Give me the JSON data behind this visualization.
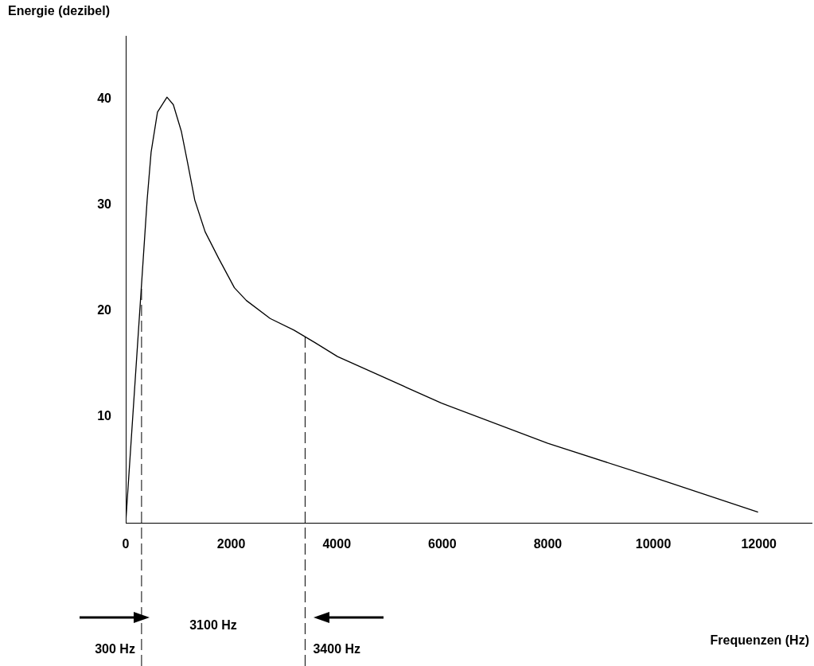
{
  "chart_data": {
    "type": "line",
    "ylabel": "Energie (dezibel)",
    "x": [
      0,
      406,
      481,
      602,
      782,
      902,
      1053,
      1173,
      1308,
      1504,
      1759,
      2060,
      2286,
      2737,
      3188,
      3594,
      4015,
      5985,
      8000,
      10000,
      11985
    ],
    "series": [
      {
        "color": "#000000",
        "values": [
          0,
          30.5,
          35,
          38.8,
          40.2,
          39.5,
          37,
          34,
          30.5,
          27.5,
          25,
          22.2,
          21,
          19.3,
          18.2,
          17,
          15.7,
          11.3,
          7.5,
          4.3,
          1.0
        ]
      }
    ],
    "xlim": [
      0,
      13000
    ],
    "xticks": [
      0,
      2000,
      4000,
      6000,
      8000,
      10000,
      12000
    ],
    "ylim": [
      0,
      46
    ],
    "yticks": [
      10,
      20,
      30,
      40
    ],
    "grid": false,
    "legend": false,
    "marker": "none",
    "line_style": "solid",
    "ref_lines": [
      {
        "axis": "x",
        "value": 300,
        "label": "300 Hz",
        "line_style": "dashed",
        "color": "#000000"
      },
      {
        "axis": "x",
        "value": 3400,
        "label": "3400 Hz",
        "line_style": "dashed",
        "color": "#000000"
      }
    ],
    "annotations": [
      "3100 Hz",
      "Frequenzen (Hz)"
    ]
  }
}
